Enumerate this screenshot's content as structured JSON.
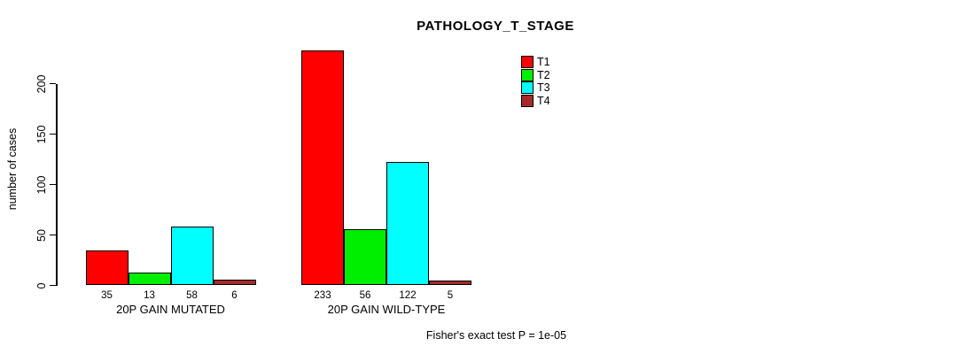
{
  "chart_data": {
    "type": "bar",
    "grouped": true,
    "title": "PATHOLOGY_T_STAGE",
    "xlabel": "",
    "ylabel": "number of cases",
    "categories": [
      "20P GAIN MUTATED",
      "20P GAIN WILD-TYPE"
    ],
    "series": [
      {
        "name": "T1",
        "color": "#ff0000",
        "values": [
          35,
          233
        ]
      },
      {
        "name": "T2",
        "color": "#00ee00",
        "values": [
          13,
          56
        ]
      },
      {
        "name": "T3",
        "color": "#00ffff",
        "values": [
          58,
          122
        ]
      },
      {
        "name": "T4",
        "color": "#a52a2a",
        "values": [
          6,
          5
        ]
      }
    ],
    "bar_value_labels": [
      [
        "35",
        "13",
        "58",
        "6"
      ],
      [
        "233",
        "56",
        "122",
        "5"
      ]
    ],
    "yticks": [
      "0",
      "50",
      "100",
      "150",
      "200"
    ],
    "ylim": [
      0,
      240
    ],
    "grid": false,
    "legend_position": "top-right",
    "legend_entries": [
      "T1",
      "T2",
      "T3",
      "T4"
    ],
    "annotation": "Fisher's exact test P = 1e-05"
  }
}
